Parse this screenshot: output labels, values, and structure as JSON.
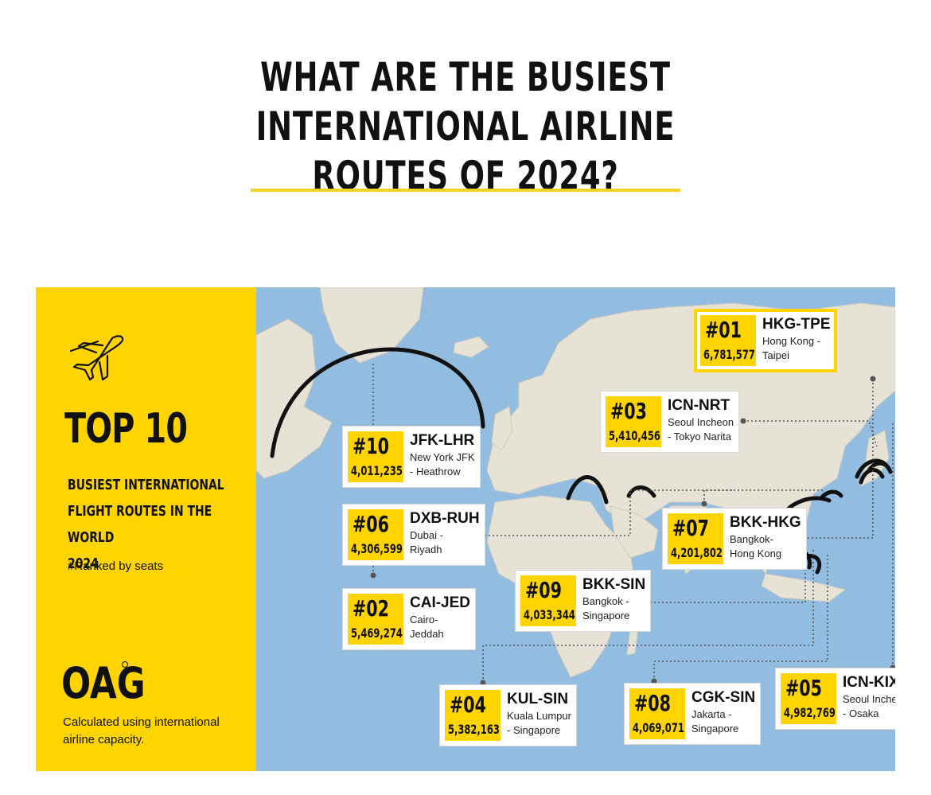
{
  "headline": {
    "line1": "WHAT ARE THE BUSIEST INTERNATIONAL AIRLINE",
    "line2": "ROUTES OF 2024?"
  },
  "colors": {
    "accent": "#ffd400",
    "ocean": "#93bde0",
    "land": "#e6e2d6",
    "text": "#111111",
    "divider": "#f2d324"
  },
  "panel": {
    "icon": "airplane-icon",
    "title": "TOP 10",
    "subtitle": [
      "BUSIEST INTERNATIONAL",
      "FLIGHT ROUTES IN THE WORLD",
      "2024"
    ],
    "ranked": "#Ranked by seats",
    "logo": "OAG",
    "note": "Calculated using international airline capacity."
  },
  "routes": [
    {
      "rank": "#01",
      "seats": "6,781,577",
      "code": "HKG-TPE",
      "city1": "Hong Kong -",
      "city2": "Taipei",
      "highlight": true
    },
    {
      "rank": "#02",
      "seats": "5,469,274",
      "code": "CAI-JED",
      "city1": "Cairo-",
      "city2": "Jeddah"
    },
    {
      "rank": "#03",
      "seats": "5,410,456",
      "code": "ICN-NRT",
      "city1": "Seoul Incheon",
      "city2": "- Tokyo Narita"
    },
    {
      "rank": "#04",
      "seats": "5,382,163",
      "code": "KUL-SIN",
      "city1": "Kuala Lumpur",
      "city2": "- Singapore"
    },
    {
      "rank": "#05",
      "seats": "4,982,769",
      "code": "ICN-KIX",
      "city1": "Seoul Incheon",
      "city2": "- Osaka"
    },
    {
      "rank": "#06",
      "seats": "4,306,599",
      "code": "DXB-RUH",
      "city1": "Dubai -",
      "city2": "Riyadh"
    },
    {
      "rank": "#07",
      "seats": "4,201,802",
      "code": "BKK-HKG",
      "city1": "Bangkok-",
      "city2": "Hong Kong"
    },
    {
      "rank": "#08",
      "seats": "4,069,071",
      "code": "CGK-SIN",
      "city1": "Jakarta -",
      "city2": "Singapore"
    },
    {
      "rank": "#09",
      "seats": "4,033,344",
      "code": "BKK-SIN",
      "city1": "Bangkok -",
      "city2": "Singapore"
    },
    {
      "rank": "#10",
      "seats": "4,011,235",
      "code": "JFK-LHR",
      "city1": "New York JFK",
      "city2": "- Heathrow"
    }
  ]
}
